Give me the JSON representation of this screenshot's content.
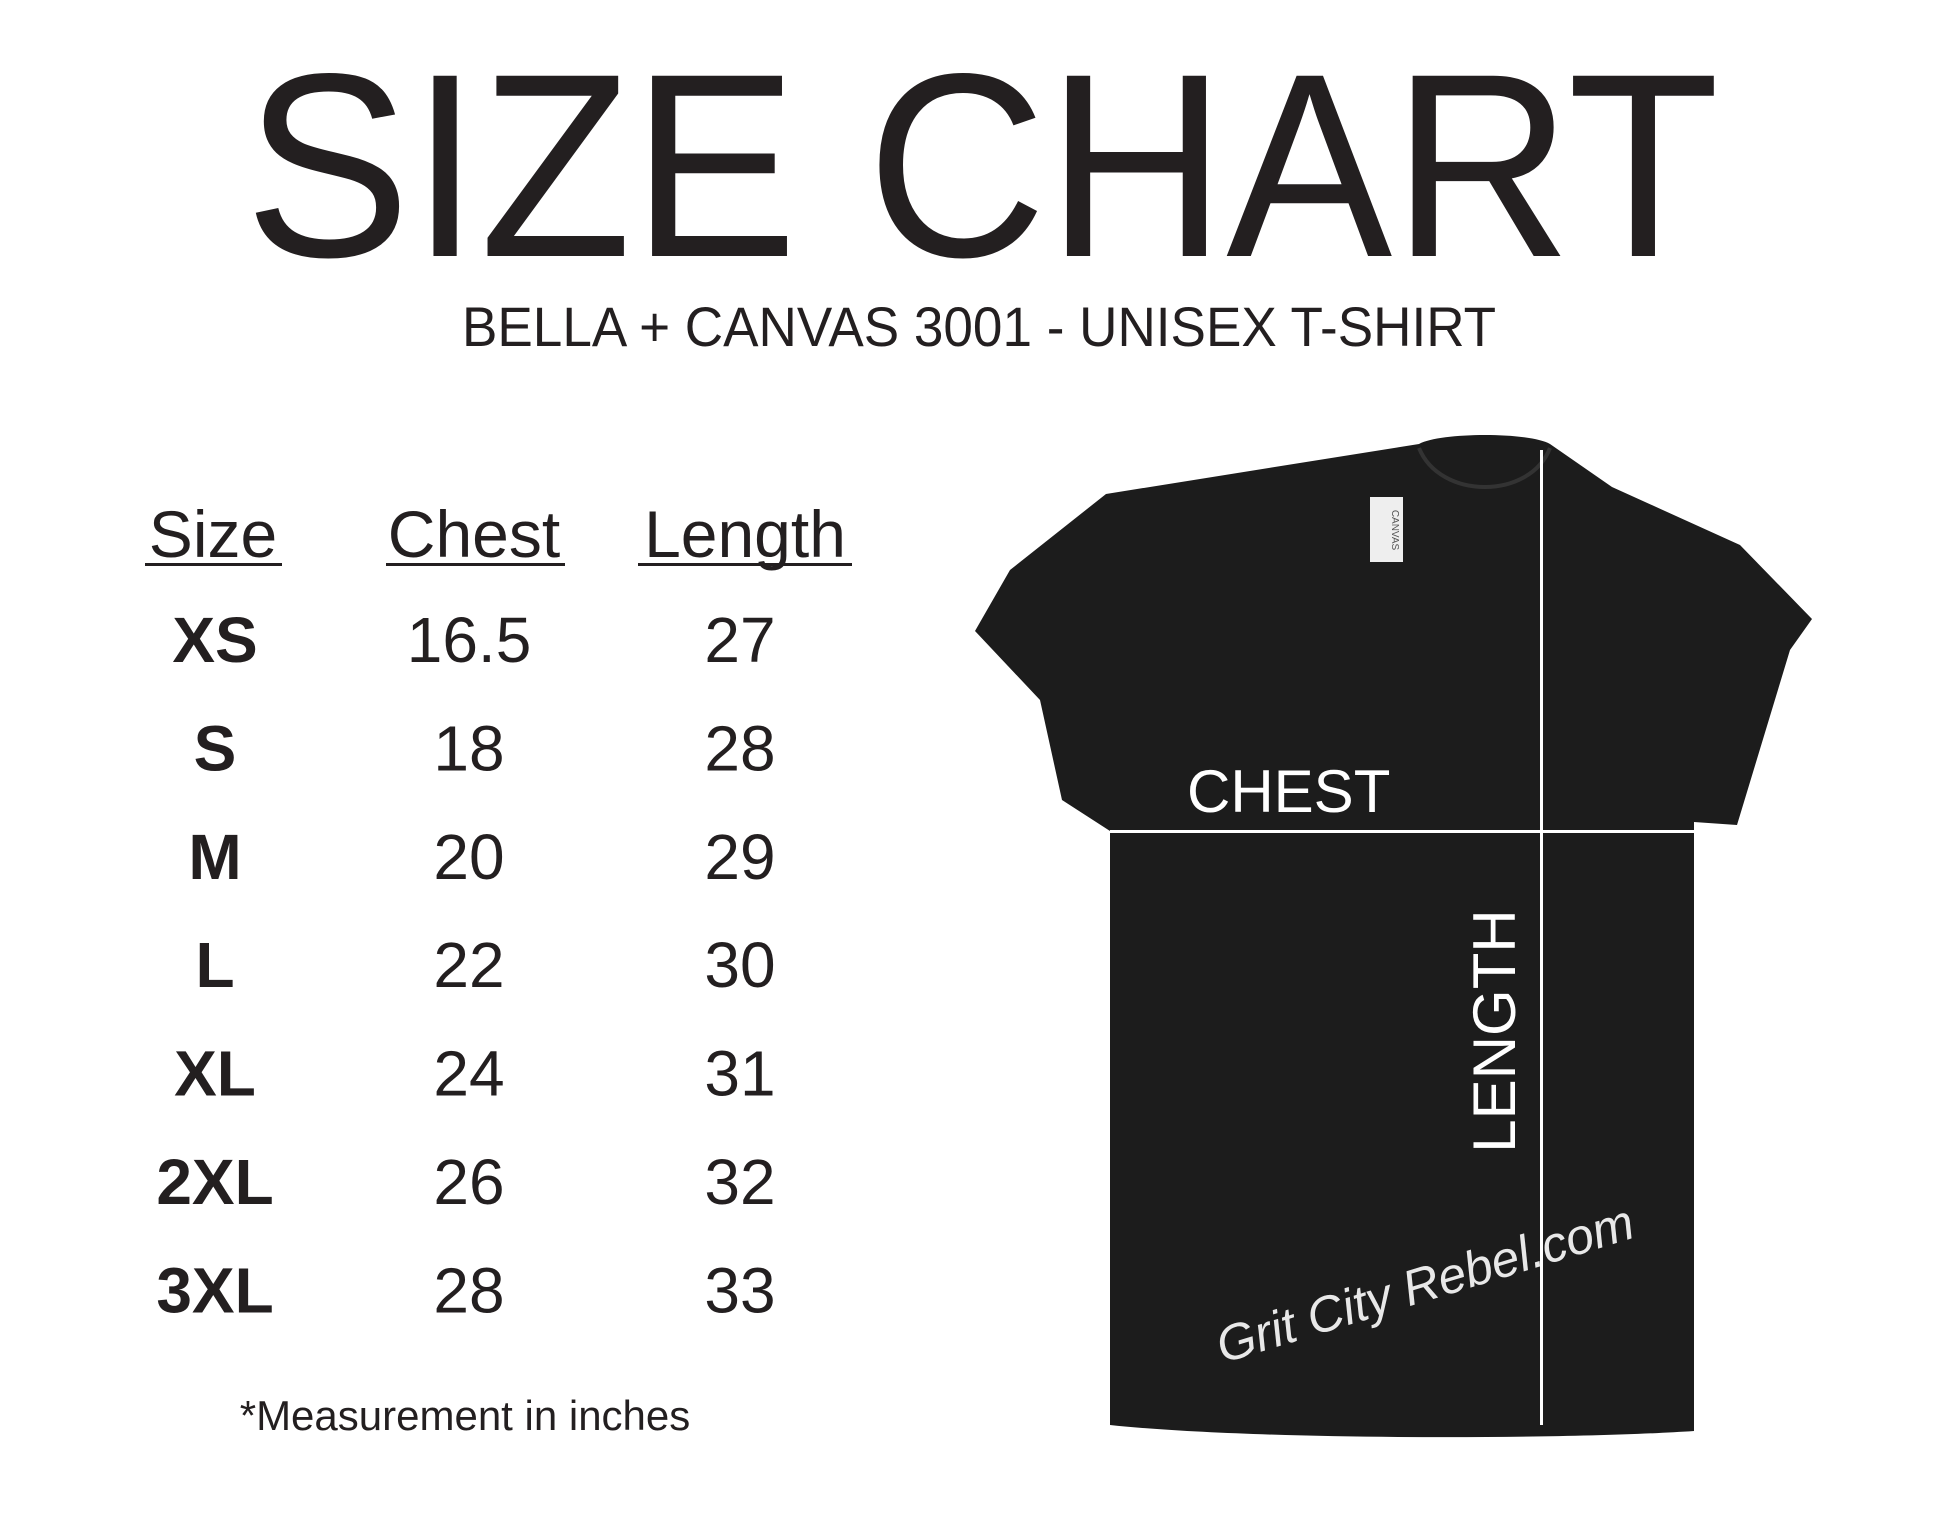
{
  "title": "SIZE CHART",
  "subtitle": "BELLA + CANVAS  3001 - UNISEX T-SHIRT",
  "table": {
    "headers": [
      "Size",
      "Chest",
      "Length"
    ],
    "rows": [
      [
        "XS",
        "16.5",
        "27"
      ],
      [
        "S",
        "18",
        "28"
      ],
      [
        "M",
        "20",
        "29"
      ],
      [
        "L",
        "22",
        "30"
      ],
      [
        "XL",
        "24",
        "31"
      ],
      [
        "2XL",
        "26",
        "32"
      ],
      [
        "3XL",
        "28",
        "33"
      ]
    ]
  },
  "note": "*Measurement in inches",
  "shirt": {
    "chest_label": "CHEST",
    "length_label": "LENGTH",
    "tag_text": "CANVAS",
    "watermark": "Grit City Rebel.com",
    "shirt_color": "#1c1c1c",
    "line_color": "#ffffff"
  }
}
